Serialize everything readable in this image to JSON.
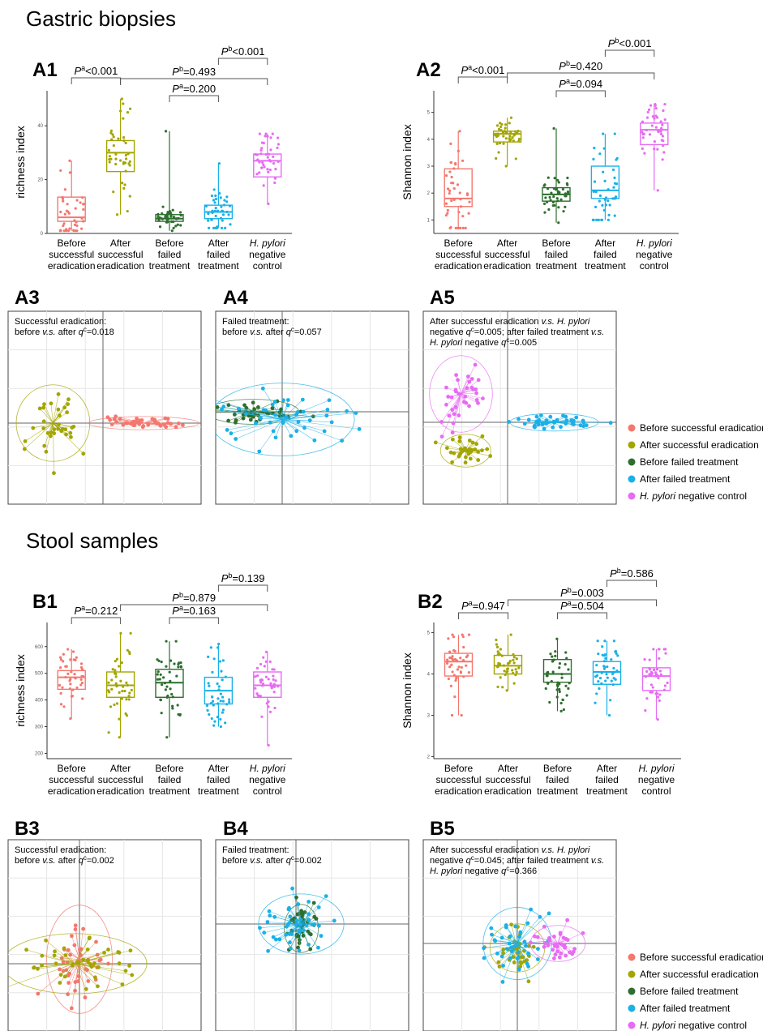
{
  "sections": {
    "gastric_title": "Gastric biopsies",
    "stool_title": "Stool samples"
  },
  "categories": [
    [
      "Before",
      "successful",
      "eradication"
    ],
    [
      "After",
      "successful",
      "eradication"
    ],
    [
      "Before",
      "failed",
      "treatment"
    ],
    [
      "After",
      "failed",
      "treatment"
    ],
    [
      "H. pylori",
      "negative",
      "control"
    ]
  ],
  "colors": {
    "before_successful": "#F4776E",
    "after_successful": "#A3A500",
    "before_failed": "#2E6E2E",
    "after_failed": "#1AB0E8",
    "hp_negative": "#E76BF3",
    "axis": "#333333",
    "grid": "#e6e6e6"
  },
  "legend": [
    {
      "label": "Before successful eradication",
      "color_key": "before_successful"
    },
    {
      "label": "After successful eradication",
      "color_key": "after_successful"
    },
    {
      "label": "Before failed treatment",
      "color_key": "before_failed"
    },
    {
      "label": "After failed treatment",
      "color_key": "after_failed"
    },
    {
      "label": "H. pylori negative control",
      "color_key": "hp_negative"
    }
  ],
  "chart_data": [
    {
      "id": "A1",
      "type": "box",
      "ylabel": "richness index",
      "y_ticks": [
        0,
        20,
        40
      ],
      "ylim": [
        0,
        50
      ],
      "boxes": [
        {
          "q1": 4.5,
          "median": 6,
          "q3": 13.5,
          "lo": 1,
          "hi": 27
        },
        {
          "q1": 23,
          "median": 30,
          "q3": 34.5,
          "lo": 7,
          "hi": 50
        },
        {
          "q1": 4.5,
          "median": 5.5,
          "q3": 7,
          "lo": 1,
          "hi": 38
        },
        {
          "q1": 5.5,
          "median": 8,
          "q3": 10.5,
          "lo": 2,
          "hi": 26
        },
        {
          "q1": 21,
          "median": 27,
          "q3": 29.5,
          "lo": 11,
          "hi": 37
        }
      ],
      "brackets": [
        {
          "from": 0,
          "to": 1,
          "label": "Pa<0.001",
          "level": 1
        },
        {
          "from": 2,
          "to": 3,
          "label": "Pa=0.200",
          "level": 0
        },
        {
          "from": 1,
          "to": 4,
          "label": "Pb=0.493",
          "level": 2
        },
        {
          "from": 3,
          "to": 4,
          "label": "Pb<0.001",
          "level": 3
        }
      ]
    },
    {
      "id": "A2",
      "type": "box",
      "ylabel": "Shannon index",
      "y_ticks": [
        1,
        2,
        3,
        4,
        5
      ],
      "ylim": [
        0.5,
        5.5
      ],
      "boxes": [
        {
          "q1": 1.5,
          "median": 1.8,
          "q3": 2.9,
          "lo": 0.7,
          "hi": 4.3
        },
        {
          "q1": 3.9,
          "median": 4.2,
          "q3": 4.3,
          "lo": 3.0,
          "hi": 4.8
        },
        {
          "q1": 1.7,
          "median": 1.95,
          "q3": 2.2,
          "lo": 0.9,
          "hi": 4.4
        },
        {
          "q1": 1.8,
          "median": 2.1,
          "q3": 3.0,
          "lo": 1.0,
          "hi": 4.2
        },
        {
          "q1": 3.8,
          "median": 4.35,
          "q3": 4.6,
          "lo": 2.1,
          "hi": 5.3
        }
      ],
      "brackets": [
        {
          "from": 0,
          "to": 1,
          "label": "Pa<0.001",
          "level": 1
        },
        {
          "from": 2,
          "to": 3,
          "label": "Pa=0.094",
          "level": 0
        },
        {
          "from": 1,
          "to": 4,
          "label": "Pb=0.420",
          "level": 2
        },
        {
          "from": 3,
          "to": 4,
          "label": "Pb<0.001",
          "level": 3
        }
      ]
    },
    {
      "id": "B1",
      "type": "box",
      "ylabel": "richness index",
      "y_ticks": [
        200,
        300,
        400,
        500,
        600
      ],
      "ylim": [
        180,
        660
      ],
      "boxes": [
        {
          "q1": 440,
          "median": 485,
          "q3": 510,
          "lo": 330,
          "hi": 590
        },
        {
          "q1": 410,
          "median": 455,
          "q3": 505,
          "lo": 260,
          "hi": 650
        },
        {
          "q1": 410,
          "median": 465,
          "q3": 515,
          "lo": 260,
          "hi": 620
        },
        {
          "q1": 385,
          "median": 435,
          "q3": 485,
          "lo": 300,
          "hi": 610
        },
        {
          "q1": 410,
          "median": 455,
          "q3": 505,
          "lo": 230,
          "hi": 580
        }
      ],
      "brackets": [
        {
          "from": 0,
          "to": 1,
          "label": "Pa=0.212",
          "level": 0
        },
        {
          "from": 2,
          "to": 3,
          "label": "Pa=0.163",
          "level": 0
        },
        {
          "from": 1,
          "to": 4,
          "label": "Pb=0.879",
          "level": 2
        },
        {
          "from": 3,
          "to": 4,
          "label": "Pb=0.139",
          "level": 3
        }
      ]
    },
    {
      "id": "B2",
      "type": "box",
      "ylabel": "Shannon index",
      "y_ticks": [
        2,
        3,
        4,
        5
      ],
      "ylim": [
        1.95,
        5.05
      ],
      "boxes": [
        {
          "q1": 3.95,
          "median": 4.3,
          "q3": 4.5,
          "lo": 3.0,
          "hi": 4.95
        },
        {
          "q1": 4.0,
          "median": 4.2,
          "q3": 4.45,
          "lo": 3.6,
          "hi": 4.95
        },
        {
          "q1": 3.8,
          "median": 4.0,
          "q3": 4.35,
          "lo": 3.1,
          "hi": 4.85
        },
        {
          "q1": 3.75,
          "median": 4.05,
          "q3": 4.3,
          "lo": 3.0,
          "hi": 4.8
        },
        {
          "q1": 3.6,
          "median": 3.95,
          "q3": 4.15,
          "lo": 2.9,
          "hi": 4.6
        }
      ],
      "brackets": [
        {
          "from": 0,
          "to": 1,
          "label": "Pa=0.947",
          "level": 0
        },
        {
          "from": 2,
          "to": 3,
          "label": "Pa=0.504",
          "level": 0
        },
        {
          "from": 1,
          "to": 4,
          "label": "Pb=0.003",
          "level": 2
        },
        {
          "from": 3,
          "to": 4,
          "label": "Pb=0.586",
          "level": 3
        }
      ]
    },
    {
      "id": "A3",
      "type": "scatter",
      "annotation": [
        "Successful eradication:",
        "before v.s. after qc=0.018"
      ],
      "groups": [
        {
          "color_key": "before_successful",
          "centroid": [
            0.45,
            0.0
          ],
          "spread": [
            0.45,
            0.06
          ],
          "n": 40
        },
        {
          "color_key": "after_successful",
          "centroid": [
            -0.55,
            0.0
          ],
          "spread": [
            0.3,
            0.35
          ],
          "n": 35
        }
      ]
    },
    {
      "id": "A4",
      "type": "scatter",
      "annotation": [
        "Failed treatment:",
        "before v.s. after qc=0.057"
      ],
      "groups": [
        {
          "color_key": "before_failed",
          "centroid": [
            -0.3,
            0.0
          ],
          "spread": [
            0.35,
            0.12
          ],
          "n": 40
        },
        {
          "color_key": "after_failed",
          "centroid": [
            0.0,
            -0.1
          ],
          "spread": [
            0.55,
            0.35
          ],
          "n": 45
        }
      ]
    },
    {
      "id": "A5",
      "type": "scatter",
      "annotation": [
        "After successful eradication v.s. H. pylori",
        "negative qc=0.005; after failed treatment v.s.",
        "H. pylori negative qc=0.005"
      ],
      "groups": [
        {
          "color_key": "hp_negative",
          "centroid": [
            -0.5,
            0.35
          ],
          "spread": [
            0.25,
            0.35
          ],
          "n": 35
        },
        {
          "color_key": "after_successful",
          "centroid": [
            -0.45,
            -0.35
          ],
          "spread": [
            0.2,
            0.15
          ],
          "n": 35
        },
        {
          "color_key": "after_failed",
          "centroid": [
            0.5,
            0.0
          ],
          "spread": [
            0.35,
            0.08
          ],
          "n": 40
        }
      ]
    },
    {
      "id": "B3",
      "type": "scatter",
      "annotation": [
        "Successful eradication:",
        "before v.s. after qc=0.002"
      ],
      "groups": [
        {
          "color_key": "before_successful",
          "centroid": [
            0.0,
            0.05
          ],
          "spread": [
            0.25,
            0.45
          ],
          "n": 40
        },
        {
          "color_key": "after_successful",
          "centroid": [
            -0.05,
            0.0
          ],
          "spread": [
            0.55,
            0.25
          ],
          "n": 40
        }
      ]
    },
    {
      "id": "B4",
      "type": "scatter",
      "annotation": [
        "Failed treatment:",
        "before v.s. after qc=0.002"
      ],
      "groups": [
        {
          "color_key": "before_failed",
          "centroid": [
            0.05,
            -0.05
          ],
          "spread": [
            0.12,
            0.2
          ],
          "n": 40
        },
        {
          "color_key": "after_failed",
          "centroid": [
            0.05,
            0.0
          ],
          "spread": [
            0.3,
            0.25
          ],
          "n": 45
        }
      ]
    },
    {
      "id": "B5",
      "type": "scatter",
      "annotation": [
        "After successful eradication v.s. H. pylori",
        "negative qc=0.045; after failed treatment v.s.",
        "H. pylori negative qc=0.366"
      ],
      "groups": [
        {
          "color_key": "after_successful",
          "centroid": [
            0.0,
            -0.05
          ],
          "spread": [
            0.2,
            0.2
          ],
          "n": 35
        },
        {
          "color_key": "after_failed",
          "centroid": [
            0.0,
            0.0
          ],
          "spread": [
            0.25,
            0.3
          ],
          "n": 40
        },
        {
          "color_key": "hp_negative",
          "centroid": [
            0.4,
            0.0
          ],
          "spread": [
            0.2,
            0.15
          ],
          "n": 35
        }
      ]
    }
  ]
}
